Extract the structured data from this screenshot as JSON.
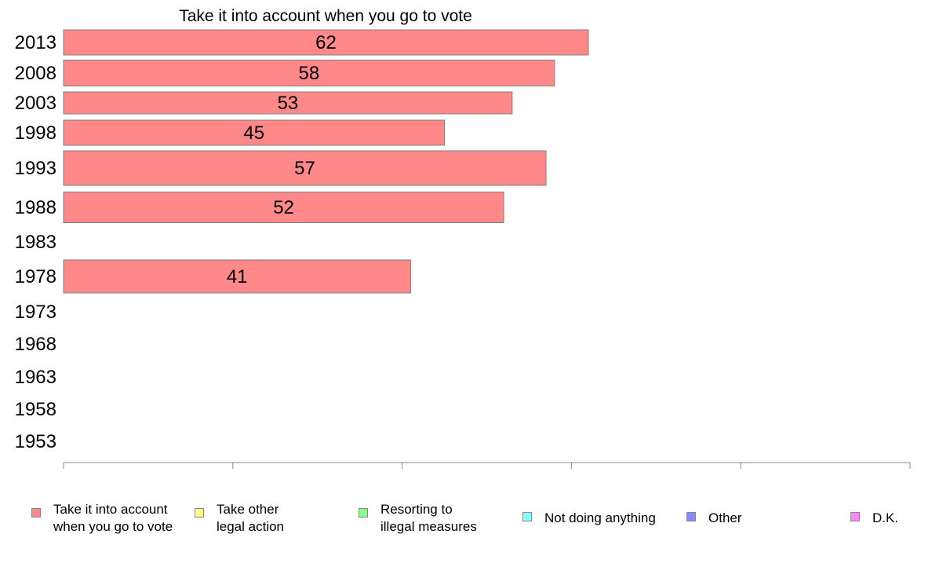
{
  "chart_data": {
    "type": "bar",
    "orientation": "horizontal",
    "title": "Take it into account when you go to vote",
    "categories": [
      "2013",
      "2008",
      "2003",
      "1998",
      "1993",
      "1988",
      "1983",
      "1978",
      "1973",
      "1968",
      "1963",
      "1958",
      "1953"
    ],
    "series": [
      {
        "name": "Take it into account\nwhen you go to vote",
        "color": "#ff8888",
        "values": [
          62,
          58,
          53,
          45,
          57,
          52,
          null,
          41,
          null,
          null,
          null,
          null,
          null
        ]
      }
    ],
    "xlim": [
      0,
      100
    ],
    "xticks": [
      0,
      20,
      40,
      60,
      80,
      100
    ],
    "grid": false,
    "legend": {
      "placement": "bottom",
      "entries": [
        {
          "label": "Take it into account\nwhen you go to vote",
          "color": "#ff8888"
        },
        {
          "label": "Take other\nlegal action",
          "color": "#ffff88"
        },
        {
          "label": "Resorting to\nillegal measures",
          "color": "#88ff88"
        },
        {
          "label": "Not doing anything",
          "color": "#88ffff"
        },
        {
          "label": "Other",
          "color": "#8888ff"
        },
        {
          "label": "D.K.",
          "color": "#ff88ff"
        }
      ]
    }
  }
}
